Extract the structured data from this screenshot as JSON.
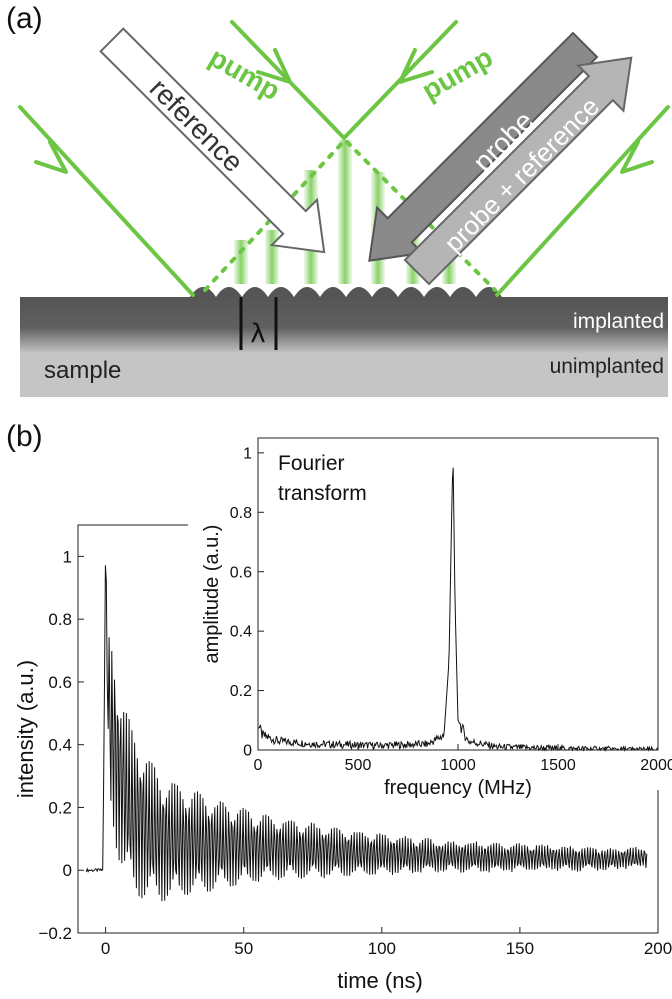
{
  "panel_a": {
    "label": "(a)",
    "beams": {
      "pump_left": "pump",
      "pump_right": "pump",
      "reference": "reference",
      "probe": "probe",
      "probe_plus_reference": "probe + reference"
    },
    "wavelength_symbol": "λ",
    "layers": {
      "implanted": "implanted",
      "unimplanted": "unimplanted",
      "sample": "sample"
    },
    "colors": {
      "beam_green": "#6cc644",
      "implanted": "#5a5a5a",
      "unimplanted": "#c4c4c4",
      "probe_arrow": "#8a8a8a",
      "probe_ref_arrow": "#b5b5b5"
    }
  },
  "panel_b": {
    "label": "(b)"
  },
  "chart_data": [
    {
      "type": "line",
      "title": "",
      "xlabel": "time (ns)",
      "ylabel": "intensity (a.u.)",
      "xlim": [
        -10,
        200
      ],
      "ylim": [
        -0.2,
        1.1
      ],
      "xticks": [
        0,
        50,
        100,
        150,
        200
      ],
      "xtick_labels": [
        "0",
        "50",
        "100",
        "150",
        "200"
      ],
      "yticks": [
        -0.2,
        0,
        0.2,
        0.4,
        0.6,
        0.8,
        1
      ],
      "ytick_labels": [
        "−0.2",
        "0",
        "0.2",
        "0.4",
        "0.6",
        "0.8",
        "1"
      ],
      "series": [
        {
          "description_of_signal": "decaying oscillation",
          "x": [
            -3,
            0,
            0.5,
            1,
            2,
            5,
            10,
            20,
            40,
            60,
            80,
            100,
            120,
            140,
            160,
            180,
            195
          ],
          "y": [
            0.0,
            1.0,
            0.7,
            0.55,
            0.45,
            0.3,
            0.18,
            0.1,
            0.08,
            0.07,
            0.06,
            0.05,
            0.045,
            0.04,
            0.04,
            0.035,
            0.04
          ],
          "oscillation_amplitude": [
            0.0,
            0.0,
            0.15,
            0.2,
            0.3,
            0.28,
            0.26,
            0.2,
            0.14,
            0.1,
            0.08,
            0.065,
            0.05,
            0.045,
            0.04,
            0.035,
            0.03
          ]
        }
      ]
    },
    {
      "type": "line",
      "title": "",
      "annotation": "Fourier transform",
      "xlabel": "frequency (MHz)",
      "ylabel": "amplitude (a.u.)",
      "xlim": [
        0,
        2000
      ],
      "ylim": [
        0,
        1.05
      ],
      "xticks": [
        0,
        500,
        1000,
        1500,
        2000
      ],
      "xtick_labels": [
        "0",
        "500",
        "1000",
        "1500",
        "2000"
      ],
      "yticks": [
        0,
        0.2,
        0.4,
        0.6,
        0.8,
        1
      ],
      "ytick_labels": [
        "0",
        "0.2",
        "0.4",
        "0.6",
        "0.8",
        "1"
      ],
      "series": [
        {
          "x": [
            0,
            20,
            100,
            300,
            600,
            850,
            930,
            955,
            970,
            975,
            985,
            1000,
            1050,
            1200,
            1500,
            2000
          ],
          "y": [
            0.09,
            0.05,
            0.03,
            0.02,
            0.015,
            0.02,
            0.05,
            0.3,
            0.85,
            1.0,
            0.5,
            0.1,
            0.03,
            0.01,
            0.005,
            0.0
          ]
        }
      ]
    }
  ]
}
